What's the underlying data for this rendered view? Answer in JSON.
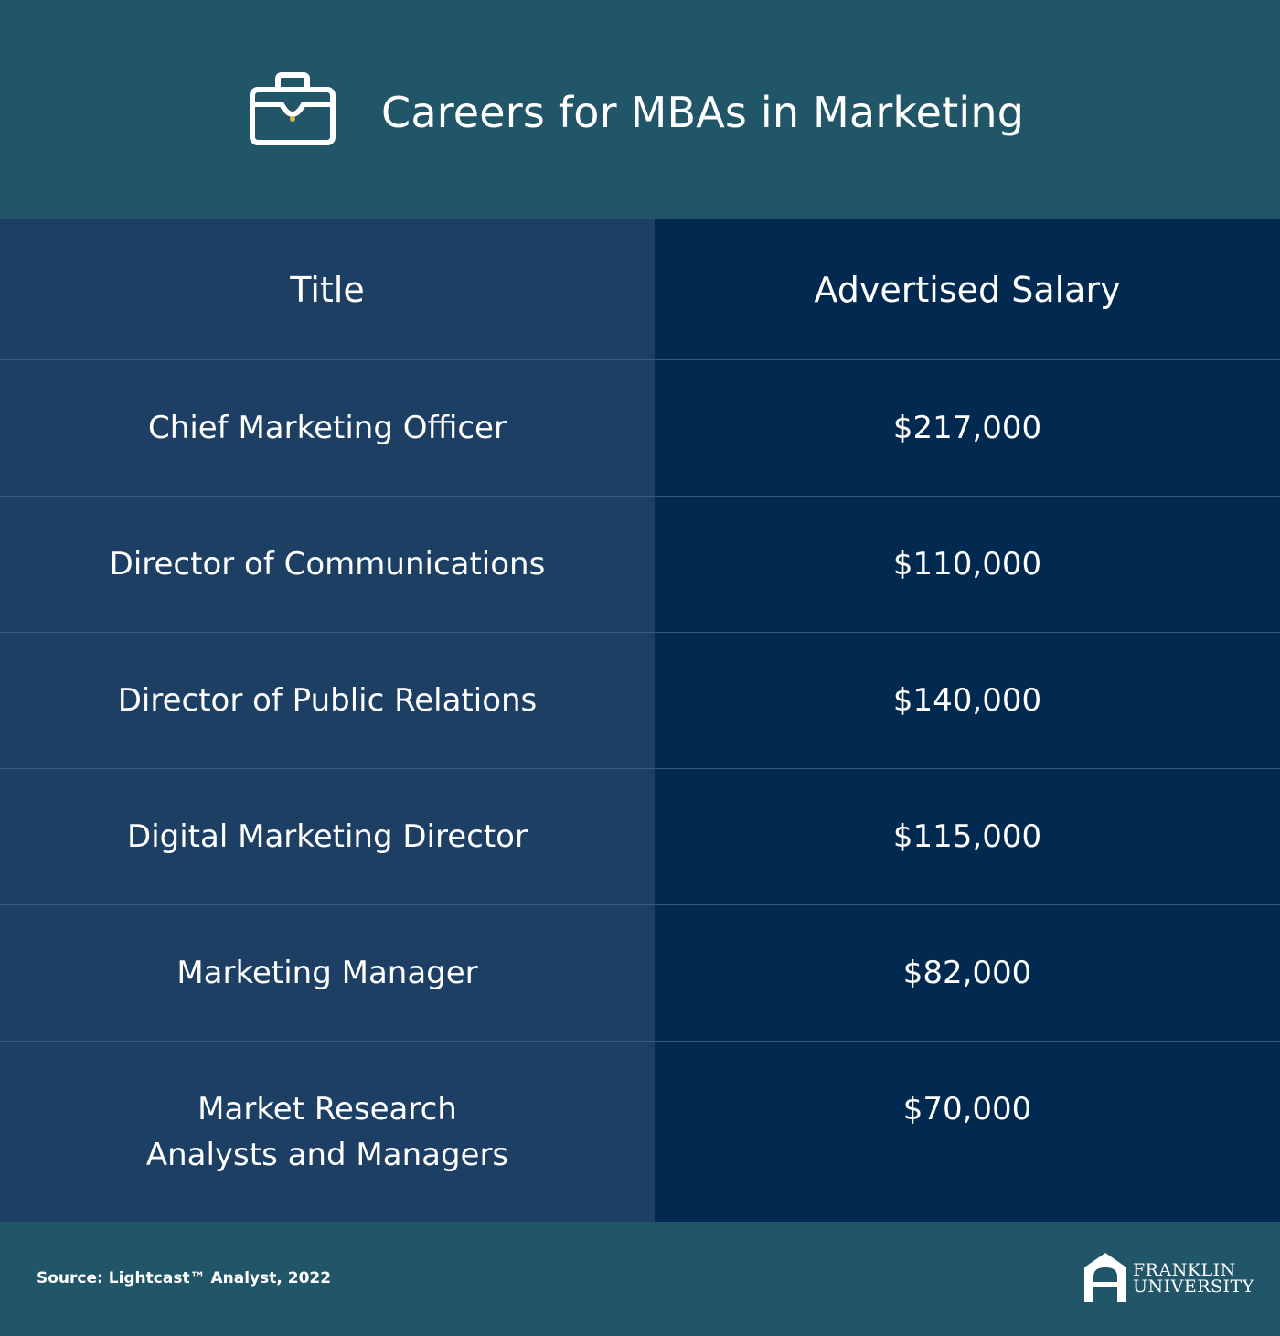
{
  "header": {
    "title": "Careers for MBAs in Marketing",
    "icon": "briefcase-icon"
  },
  "table": {
    "columns": [
      "Title",
      "Advertised Salary"
    ],
    "rows": [
      {
        "title": "Chief Marketing Officer",
        "salary": "$217,000"
      },
      {
        "title": "Director of Communications",
        "salary": "$110,000"
      },
      {
        "title": "Director of Public Relations",
        "salary": "$140,000"
      },
      {
        "title": "Digital Marketing Director",
        "salary": "$115,000"
      },
      {
        "title": "Marketing Manager",
        "salary": "$82,000"
      },
      {
        "title_lines": [
          "Market Research",
          "Analysts and Managers"
        ],
        "salary": "$70,000"
      }
    ]
  },
  "footer": {
    "source": "Source: Lightcast™ Analyst, 2022",
    "logo": {
      "line1": "FRANKLIN",
      "line2": "UNIVERSITY",
      "icon": "franklin-arch-logo-icon"
    }
  },
  "colors": {
    "header_bg": "#215669",
    "left_column_bg": "#1d3f63",
    "right_column_bg": "#022a50",
    "divider": "#3a5c7c",
    "text": "#ffffff"
  }
}
